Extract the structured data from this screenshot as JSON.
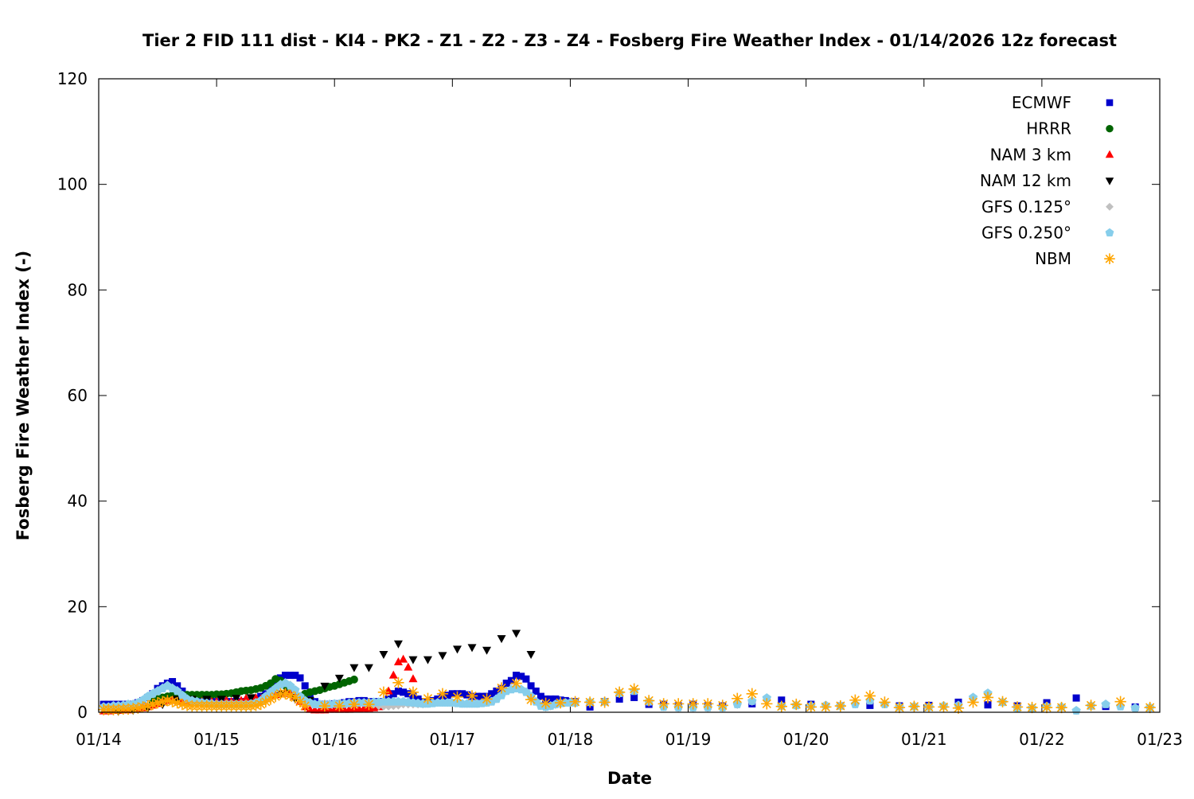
{
  "chart_data": {
    "type": "scatter",
    "title": "Tier 2 FID 111 dist - KI4 - PK2 - Z1 - Z2 - Z3 - Z4 - Fosberg Fire Weather Index - 01/14/2026 12z forecast",
    "xlabel": "Date",
    "ylabel": "Fosberg Fire Weather Index (-)",
    "xlim": [
      "01/14 00z",
      "01/23 00z"
    ],
    "ylim": [
      0,
      120
    ],
    "x_ticks": [
      "01/14",
      "01/15",
      "01/16",
      "01/17",
      "01/18",
      "01/19",
      "01/20",
      "01/21",
      "01/22",
      "01/23"
    ],
    "y_ticks": [
      0,
      20,
      40,
      60,
      80,
      100,
      120
    ],
    "grid": false,
    "legend_position": "top-right",
    "series": [
      {
        "name": "ECMWF",
        "color": "#0000cc",
        "marker": "square",
        "segments": [
          {
            "start": "01/14 01z",
            "step_hours": 1,
            "values": [
              1.5,
              1.5,
              1.5,
              1.5,
              1.5,
              1.5,
              1.5,
              1.8,
              2.2,
              2.8,
              3.5,
              4.5,
              5,
              5.5,
              5.8,
              5,
              4,
              3,
              2.5,
              2.2,
              2,
              2,
              2,
              2,
              2,
              2,
              2,
              2,
              2,
              2,
              2.2,
              2.5,
              3,
              3.5,
              4.5,
              5.5,
              6.5,
              7,
              7,
              7,
              6.5,
              5,
              3,
              2,
              1.5,
              1.5,
              1.5,
              1.6,
              1.6,
              1.8,
              2,
              2,
              2.2,
              2.2,
              2,
              2,
              2,
              2,
              2.5,
              3.5,
              4,
              3.8,
              3.5,
              3,
              2.5,
              2,
              2,
              2.2,
              2.5,
              3,
              3.2,
              3.5,
              3.5,
              3.5,
              3.3,
              3,
              3,
              3,
              3,
              3.5,
              4,
              4.5,
              5.5,
              6,
              7,
              6.8,
              6.3,
              5,
              4,
              3,
              2.5,
              2.5,
              2.5,
              2.3,
              2.2,
              2
            ]
          },
          {
            "start": "01/18 01z",
            "step_hours": 3,
            "values": [
              2,
              1.0,
              2.0,
              2.5,
              2.8,
              1.5,
              1.5,
              1.2,
              1.5,
              1.2
            ]
          },
          {
            "start": "01/19 07z",
            "step_hours": 6,
            "values": [
              1.2,
              1.6,
              2.3,
              1.5,
              1.2,
              1.3,
              1.2,
              1.3,
              1.9,
              1.4,
              1.2,
              1.8,
              2.7,
              1.1,
              1.0
            ]
          }
        ]
      },
      {
        "name": "HRRR",
        "color": "#006400",
        "marker": "circle",
        "segments": [
          {
            "start": "01/14 11z",
            "step_hours": 1,
            "values": [
              2,
              2.5,
              2.8,
              3,
              3.2,
              3.3,
              3.3,
              3.3,
              3.3,
              3.3,
              3.3,
              3.3,
              3.3,
              3.4,
              3.4,
              3.5,
              3.6,
              3.8,
              4,
              4.1,
              4.2,
              4.4,
              4.6,
              5,
              5.5,
              6.3,
              6,
              5,
              4,
              3.2,
              3,
              3.5,
              3.8,
              4,
              4.2,
              4.5,
              4.8,
              5,
              5.3,
              5.6,
              5.9,
              6.2
            ]
          }
        ]
      },
      {
        "name": "NAM 3 km",
        "color": "#ff0000",
        "marker": "triangle-up",
        "segments": [
          {
            "start": "01/14 01z",
            "step_hours": 1,
            "values": [
              0.2,
              0.2,
              0.3,
              0.3,
              0.4,
              0.4,
              0.5,
              0.6,
              0.8,
              1,
              1.3,
              1.6,
              2,
              2.2,
              2.3,
              2.2,
              2,
              2,
              2,
              2,
              2,
              2,
              2,
              2,
              2,
              2.2,
              2,
              2.4,
              2.2,
              2.6,
              2.3,
              2.7,
              2.5,
              2.8,
              3,
              3.3,
              3.5,
              3.7,
              3.5,
              3,
              2,
              1,
              0.5,
              0.4,
              0.4,
              0.4,
              0.5,
              0.5,
              0.5,
              0.5,
              0.5,
              0.6,
              0.6,
              0.7,
              0.7,
              0.8,
              1,
              2,
              4,
              7,
              9.5,
              10,
              8.5,
              6.3
            ]
          }
        ]
      },
      {
        "name": "NAM 12 km",
        "color": "#000000",
        "marker": "triangle-down",
        "segments": [
          {
            "start": "01/14 04z",
            "step_hours": 3,
            "values": [
              0.2,
              0.4,
              0.8,
              1.5,
              2.5,
              2.5,
              2.5,
              2.5,
              2.7,
              2.8,
              3,
              3.5,
              2.5,
              2.3,
              5,
              6.5,
              8.5,
              8.5,
              11,
              13,
              10,
              10,
              10.8,
              12,
              12.3,
              11.8,
              14,
              15,
              11
            ]
          }
        ]
      },
      {
        "name": "GFS 0.125°",
        "color": "#c0c0c0",
        "marker": "diamond",
        "segments": [
          {
            "start": "01/14 01z",
            "step_hours": 1,
            "values": [
              1,
              1,
              1.2,
              1.2,
              1.3,
              1.5,
              1.5,
              1.8,
              2.3,
              3,
              3.5,
              4.2,
              4.7,
              5.2,
              4.7,
              4.2,
              3.3,
              2.6,
              2.2,
              2,
              1.8,
              1.7,
              1.6,
              1.5,
              1.5,
              1.5,
              1.5,
              1.5,
              1.5,
              1.5,
              1.6,
              1.8,
              2.2,
              3,
              3.9,
              4.7,
              5.4,
              5.7,
              5.2,
              4.3,
              3.1,
              2.2,
              1.8,
              1.5,
              1.5,
              1.5,
              1.5,
              1.6,
              1.6,
              1.6,
              1.7,
              1.8,
              1.8,
              1.8,
              1.8,
              1.5,
              1.2,
              1.1,
              1.1,
              1.2,
              1.3,
              1.5,
              1.5,
              1.5,
              1.5,
              1.5,
              1.6,
              1.7,
              1.8,
              1.8,
              1.8,
              1.8,
              1.7,
              1.6,
              1.6,
              1.6,
              1.6,
              1.7,
              1.8,
              2,
              2.5,
              3.2,
              4,
              4.4,
              4.6,
              4.4,
              3.9,
              3,
              2,
              1.2,
              0.9,
              1.1,
              1.4,
              1.7,
              1.8,
              1.8
            ]
          },
          {
            "start": "01/18 01z",
            "step_hours": 3,
            "values": [
              1.8,
              1.9,
              2.0,
              3.6,
              4.1,
              2.0,
              1.0,
              0.8,
              0.8,
              0.8
            ]
          },
          {
            "start": "01/19 07z",
            "step_hours": 3,
            "values": [
              0.8,
              1.4,
              2.0,
              2.8,
              1.1,
              1.2,
              1.1,
              1.3,
              1.2,
              1.5,
              2.2,
              1.5,
              1.0,
              1.0,
              1.0,
              1.2,
              1.3,
              2.9,
              3.7,
              1.9,
              0.7,
              0.7,
              1.1,
              1.0,
              0.3,
              1.2,
              1.6,
              1.1,
              0.8,
              0.9
            ]
          }
        ]
      },
      {
        "name": "GFS 0.250°",
        "color": "#87ceeb",
        "marker": "pentagon",
        "segments": [
          {
            "start": "01/14 01z",
            "step_hours": 1,
            "values": [
              1,
              1,
              1.2,
              1.2,
              1.3,
              1.5,
              1.5,
              1.8,
              2.3,
              3,
              3.5,
              4,
              4.5,
              5,
              4.5,
              4,
              3.2,
              2.5,
              2.2,
              2,
              1.8,
              1.7,
              1.6,
              1.5,
              1.5,
              1.5,
              1.5,
              1.5,
              1.5,
              1.5,
              1.6,
              1.8,
              2.2,
              3,
              3.8,
              4.5,
              5.2,
              5.5,
              5,
              4.2,
              3,
              2.2,
              1.8,
              1.5,
              1.5,
              1.5,
              1.5,
              1.6,
              1.6,
              1.6,
              1.7,
              1.8,
              1.8,
              1.8,
              1.8,
              1.9,
              1.9,
              2,
              2,
              2,
              2,
              2,
              1.9,
              1.8,
              1.7,
              1.6,
              1.6,
              1.7,
              1.8,
              1.8,
              1.8,
              1.8,
              1.7,
              1.6,
              1.6,
              1.6,
              1.6,
              1.7,
              1.8,
              2,
              2.5,
              3.2,
              4,
              4.3,
              4.5,
              4.3,
              3.8,
              3,
              2,
              1.2,
              1,
              1.2,
              1.5,
              1.7,
              1.8,
              1.8
            ]
          },
          {
            "start": "01/18 01z",
            "step_hours": 3,
            "values": [
              1.8,
              1.9,
              2.0,
              3.6,
              4.0,
              2.0,
              1.0,
              0.9,
              0.9,
              0.9
            ]
          },
          {
            "start": "01/19 07z",
            "step_hours": 3,
            "values": [
              0.9,
              1.5,
              2.1,
              2.7,
              1.2,
              1.3,
              1.2,
              1.3,
              1.2,
              1.5,
              2.2,
              1.5,
              1.0,
              1.1,
              1.0,
              1.2,
              1.3,
              2.8,
              3.6,
              1.9,
              0.8,
              0.8,
              1.1,
              1.0,
              0.3,
              1.2,
              1.5,
              1.1,
              0.8,
              0.9
            ]
          }
        ]
      },
      {
        "name": "NBM",
        "color": "#ffa500",
        "marker": "star",
        "segments": [
          {
            "start": "01/14 01z",
            "step_hours": 1,
            "values": [
              0.5,
              0.5,
              0.5,
              0.5,
              0.6,
              0.6,
              0.7,
              0.8,
              1,
              1.2,
              1.5,
              1.8,
              2,
              2.2,
              2,
              1.8,
              1.5,
              1.3,
              1.2,
              1.2,
              1.2,
              1.2,
              1.2,
              1.2,
              1.2,
              1.2,
              1.2,
              1.2,
              1.2,
              1.2,
              1.2,
              1.3,
              1.5,
              2,
              2.5,
              3,
              3.5,
              3.5,
              3.2,
              2.8,
              2,
              1.2
            ]
          },
          {
            "start": "01/15 22z",
            "step_hours": 3,
            "values": [
              1.2,
              1.2,
              1.5,
              1.5,
              3.8,
              5.6,
              3.8,
              2.6,
              3.5,
              2.9,
              3.1,
              2.5,
              4.6,
              5.5,
              2.4,
              1.7,
              1.8,
              2.0,
              1.9,
              1.9,
              3.8,
              4.4,
              2.2,
              1.6,
              1.6,
              1.6,
              1.6
            ]
          },
          {
            "start": "01/19 07z",
            "step_hours": 3,
            "values": [
              1.3,
              2.6,
              3.5,
              1.6,
              1.1,
              1.5,
              1.0,
              1.0,
              1.2,
              2.3,
              3.1,
              1.9,
              0.9,
              1.1,
              1.0,
              1.0,
              0.8,
              1.9,
              2.8,
              2.0,
              1.0,
              0.9,
              0.9,
              0.9,
              null,
              1.3,
              null,
              2.0,
              null,
              0.9
            ]
          }
        ]
      }
    ]
  }
}
